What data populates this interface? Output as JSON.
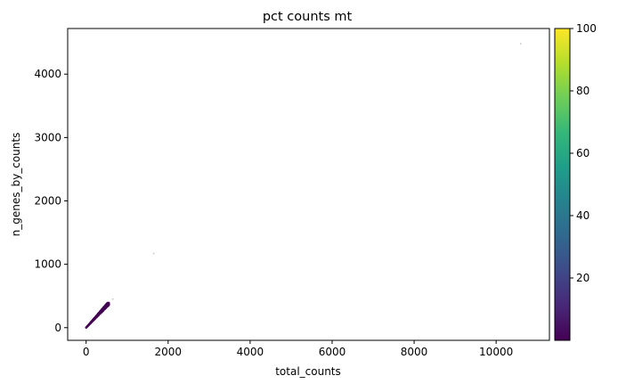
{
  "chart_data": {
    "type": "scatter",
    "title": "pct counts mt",
    "xlabel": "total_counts",
    "ylabel": "n_genes_by_counts",
    "xlim": [
      -450,
      11300
    ],
    "ylim": [
      -200,
      4720
    ],
    "xticks": [
      0,
      2000,
      4000,
      6000,
      8000,
      10000
    ],
    "yticks": [
      0,
      1000,
      2000,
      3000,
      4000
    ],
    "grid": false,
    "legend": "none",
    "point_cluster": {
      "description_free": true,
      "x_range": [
        0,
        560
      ],
      "y_range": [
        0,
        390
      ],
      "approx_ratio": 0.7,
      "color_value": 0
    },
    "points": [
      {
        "x": 1650,
        "y": 1170,
        "value": 0
      },
      {
        "x": 650,
        "y": 450,
        "value": 0
      },
      {
        "x": 10600,
        "y": 4480,
        "value": 0
      }
    ],
    "colorbar": {
      "colormap": "viridis",
      "min": 0,
      "max": 100,
      "ticks": [
        20,
        40,
        60,
        80,
        100
      ],
      "colors": [
        "#440154",
        "#482878",
        "#3e4a89",
        "#31688e",
        "#26828e",
        "#1f9e89",
        "#35b779",
        "#6ece58",
        "#b5de2b",
        "#fde725"
      ]
    }
  }
}
